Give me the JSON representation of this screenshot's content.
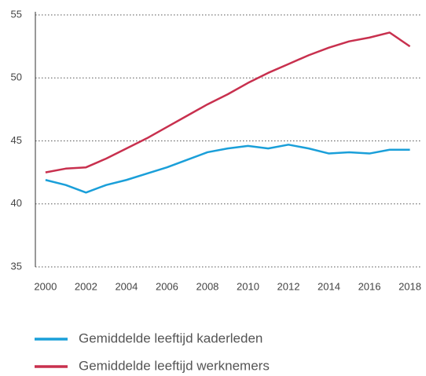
{
  "chart_data": {
    "type": "line",
    "x": [
      2000,
      2001,
      2002,
      2003,
      2004,
      2005,
      2006,
      2007,
      2008,
      2009,
      2010,
      2011,
      2012,
      2013,
      2014,
      2015,
      2016,
      2017,
      2018
    ],
    "series": [
      {
        "name": "Gemiddelde leeftijd kaderleden",
        "color": "#1a9fd9",
        "values": [
          41.9,
          41.5,
          40.9,
          41.5,
          41.9,
          42.4,
          42.9,
          43.5,
          44.1,
          44.4,
          44.6,
          44.4,
          44.7,
          44.4,
          44.0,
          44.1,
          44.0,
          44.3,
          44.3
        ]
      },
      {
        "name": "Gemiddelde leeftijd werknemers",
        "color": "#c8304e",
        "values": [
          42.5,
          42.8,
          42.9,
          43.6,
          44.4,
          45.2,
          46.1,
          47.0,
          47.9,
          48.7,
          49.6,
          50.4,
          51.1,
          51.8,
          52.4,
          52.9,
          53.2,
          53.6,
          52.5
        ]
      }
    ],
    "xlim": [
      1999.5,
      2018.6
    ],
    "xticks": [
      2000,
      2002,
      2004,
      2006,
      2008,
      2010,
      2012,
      2014,
      2016,
      2018
    ],
    "ylim": [
      35,
      55
    ],
    "yticks": [
      35,
      40,
      45,
      50,
      55
    ],
    "grid": true,
    "legend": "bottom"
  }
}
